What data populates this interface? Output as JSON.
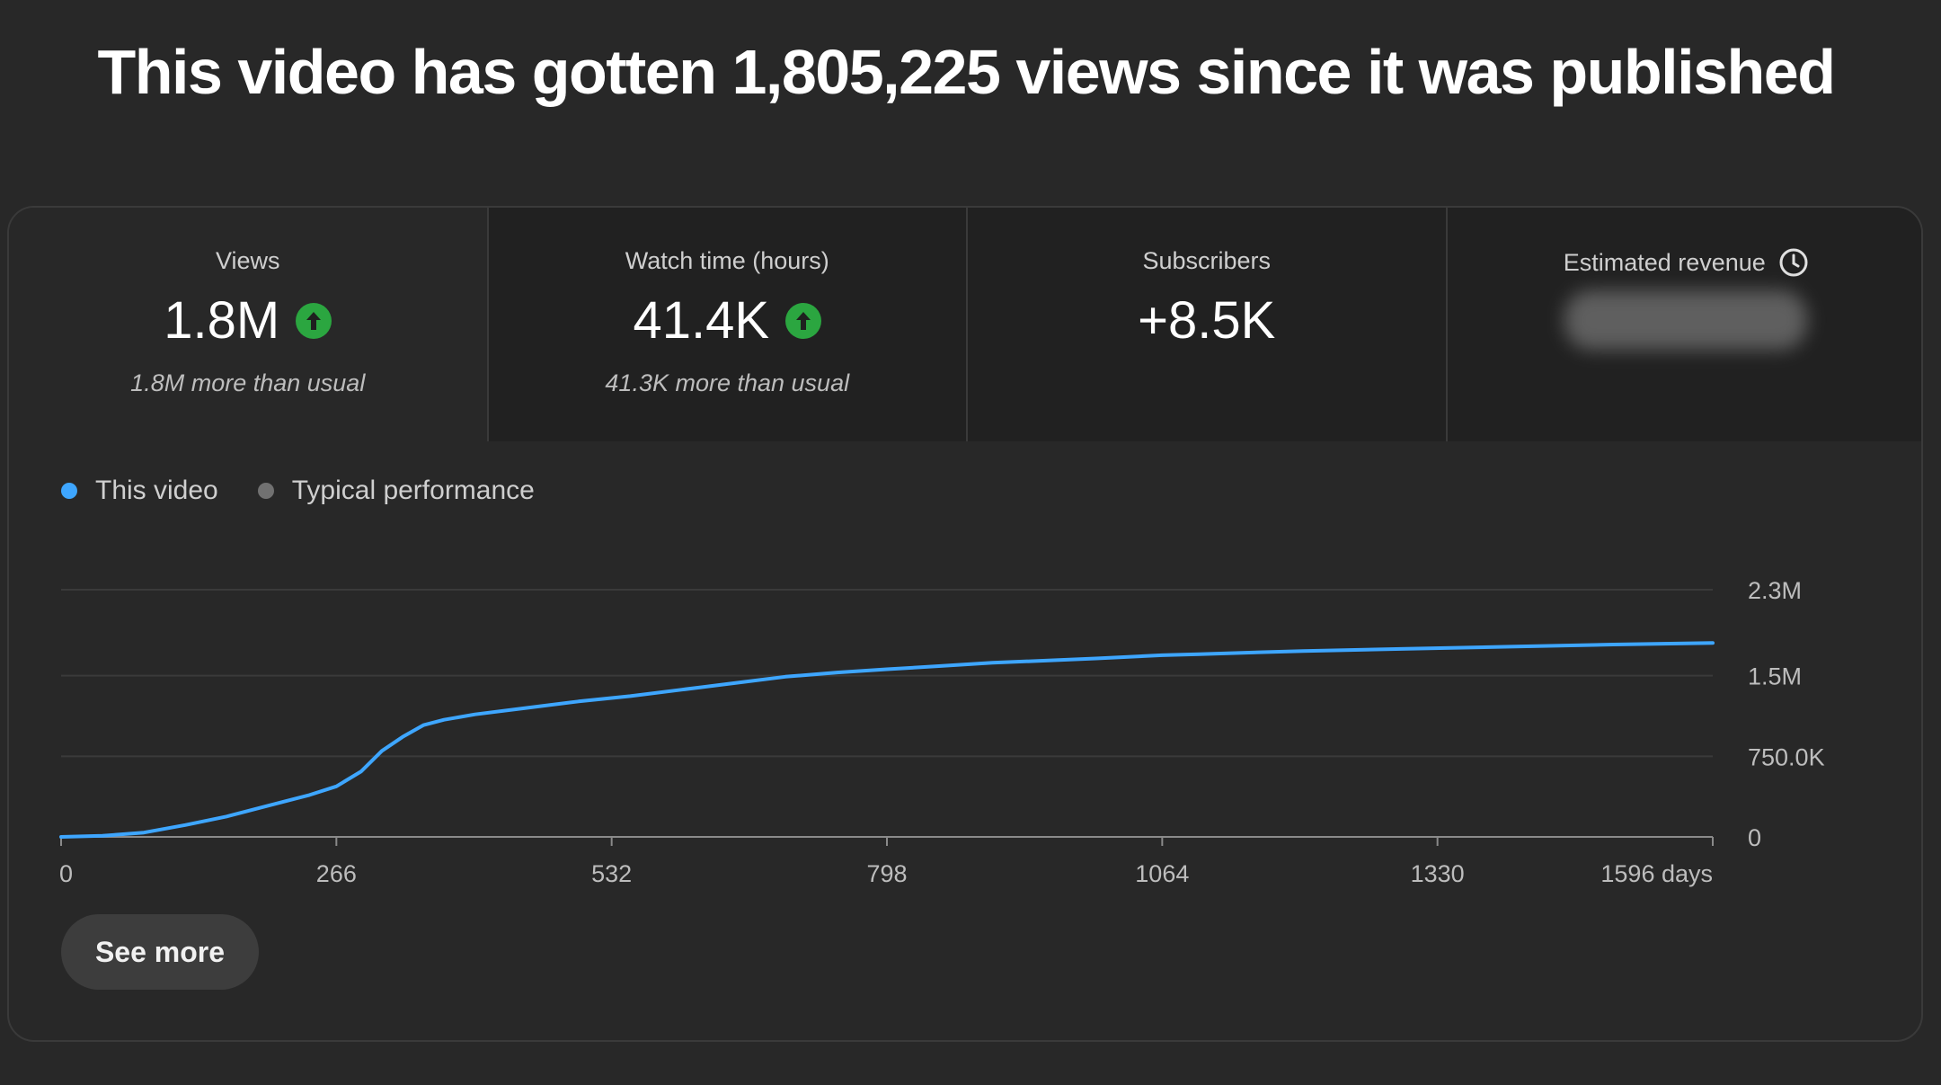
{
  "headline": "This video has gotten 1,805,225 views since it was published",
  "metrics": [
    {
      "label": "Views",
      "value": "1.8M",
      "trend": "up",
      "note": "1.8M more than usual"
    },
    {
      "label": "Watch time (hours)",
      "value": "41.4K",
      "trend": "up",
      "note": "41.3K more than usual"
    },
    {
      "label": "Subscribers",
      "value": "+8.5K",
      "trend": "",
      "note": ""
    },
    {
      "label": "Estimated revenue",
      "value": "",
      "trend": "",
      "note": ""
    }
  ],
  "icons": {
    "trend": "arrow-up-circle-icon",
    "revenue_info": "clock-icon"
  },
  "colors": {
    "this_video": "#3ea6ff",
    "typical": "#717171",
    "trend_up": "#2ba640",
    "background": "#282828"
  },
  "legend": {
    "this_video": "This video",
    "typical": "Typical performance"
  },
  "see_more_label": "See more",
  "chart_data": {
    "type": "line",
    "xlabel": "",
    "ylabel": "",
    "x_unit": "days",
    "xlim": [
      0,
      1596
    ],
    "ylim": [
      0,
      2300000
    ],
    "x_ticks": [
      0,
      266,
      532,
      798,
      1064,
      1330,
      1596
    ],
    "x_tick_labels": [
      "0",
      "266",
      "532",
      "798",
      "1064",
      "1330",
      "1596 days"
    ],
    "y_ticks": [
      0,
      750000,
      1500000,
      2300000
    ],
    "y_tick_labels": [
      "0",
      "750.0K",
      "1.5M",
      "2.3M"
    ],
    "grid": true,
    "legend_position": "top-left",
    "series": [
      {
        "name": "This video",
        "x": [
          0,
          40,
          80,
          120,
          160,
          200,
          240,
          266,
          290,
          310,
          330,
          350,
          370,
          400,
          450,
          500,
          550,
          600,
          650,
          700,
          750,
          798,
          850,
          900,
          1000,
          1064,
          1100,
          1200,
          1300,
          1400,
          1500,
          1596
        ],
        "y": [
          0,
          10000,
          40000,
          110000,
          190000,
          290000,
          390000,
          470000,
          610000,
          800000,
          930000,
          1040000,
          1090000,
          1140000,
          1200000,
          1260000,
          1310000,
          1370000,
          1430000,
          1490000,
          1530000,
          1560000,
          1590000,
          1620000,
          1660000,
          1690000,
          1700000,
          1730000,
          1750000,
          1770000,
          1790000,
          1805225
        ]
      }
    ]
  }
}
